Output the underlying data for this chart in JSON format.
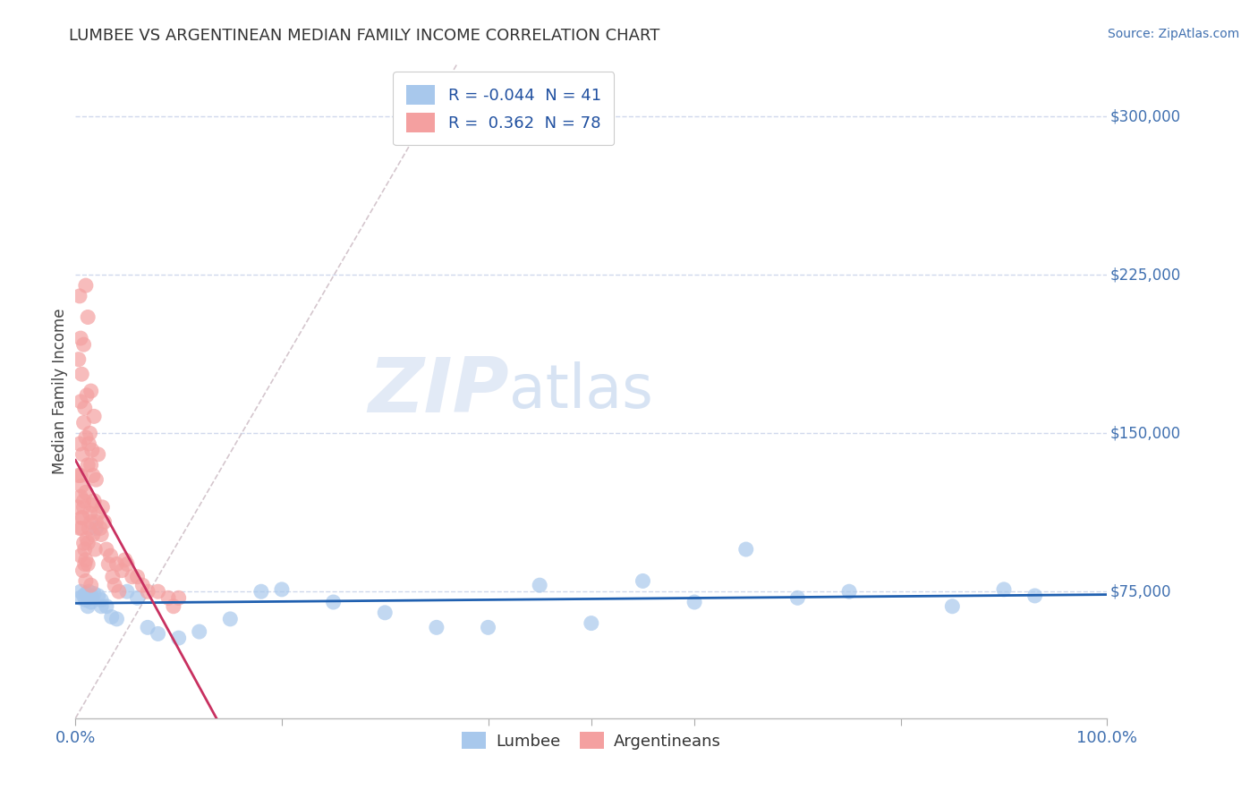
{
  "title": "LUMBEE VS ARGENTINEAN MEDIAN FAMILY INCOME CORRELATION CHART",
  "source": "Source: ZipAtlas.com",
  "ylabel": "Median Family Income",
  "ytick_labels": [
    "$75,000",
    "$150,000",
    "$225,000",
    "$300,000"
  ],
  "ytick_values": [
    75000,
    150000,
    225000,
    300000
  ],
  "ylim": [
    15000,
    325000
  ],
  "xlim": [
    0.0,
    1.0
  ],
  "legend_blue_R": "-0.044",
  "legend_blue_N": "41",
  "legend_pink_R": "0.362",
  "legend_pink_N": "78",
  "legend_label_blue": "Lumbee",
  "legend_label_pink": "Argentineans",
  "blue_color": "#A8C8EC",
  "pink_color": "#F4A0A0",
  "blue_line_color": "#2060B0",
  "pink_line_color": "#C83060",
  "diagonal_color": "#D0C0C8",
  "background_color": "#FFFFFF",
  "grid_color": "#D0D8EC",
  "watermark_zip": "ZIP",
  "watermark_atlas": "atlas",
  "lumbee_x": [
    0.005,
    0.005,
    0.008,
    0.01,
    0.01,
    0.012,
    0.013,
    0.015,
    0.015,
    0.016,
    0.018,
    0.02,
    0.022,
    0.025,
    0.025,
    0.03,
    0.035,
    0.04,
    0.05,
    0.06,
    0.07,
    0.08,
    0.1,
    0.12,
    0.15,
    0.18,
    0.2,
    0.25,
    0.3,
    0.35,
    0.4,
    0.45,
    0.5,
    0.55,
    0.6,
    0.65,
    0.7,
    0.75,
    0.85,
    0.9,
    0.93
  ],
  "lumbee_y": [
    75000,
    72000,
    73000,
    71000,
    74000,
    68000,
    75000,
    73000,
    70000,
    72000,
    74000,
    105000,
    73000,
    68000,
    71000,
    68000,
    63000,
    62000,
    75000,
    72000,
    58000,
    55000,
    53000,
    56000,
    62000,
    75000,
    76000,
    70000,
    65000,
    58000,
    58000,
    78000,
    60000,
    80000,
    70000,
    95000,
    72000,
    75000,
    68000,
    76000,
    73000
  ],
  "argent_x": [
    0.002,
    0.003,
    0.003,
    0.004,
    0.004,
    0.005,
    0.005,
    0.005,
    0.006,
    0.006,
    0.006,
    0.007,
    0.007,
    0.008,
    0.008,
    0.008,
    0.009,
    0.009,
    0.01,
    0.01,
    0.01,
    0.011,
    0.011,
    0.012,
    0.012,
    0.012,
    0.013,
    0.013,
    0.014,
    0.014,
    0.015,
    0.015,
    0.015,
    0.016,
    0.016,
    0.017,
    0.017,
    0.018,
    0.018,
    0.019,
    0.02,
    0.02,
    0.022,
    0.022,
    0.024,
    0.025,
    0.026,
    0.028,
    0.03,
    0.032,
    0.034,
    0.036,
    0.038,
    0.04,
    0.042,
    0.045,
    0.048,
    0.05,
    0.055,
    0.06,
    0.065,
    0.07,
    0.08,
    0.09,
    0.095,
    0.1,
    0.004,
    0.005,
    0.005,
    0.006,
    0.007,
    0.008,
    0.008,
    0.009,
    0.01,
    0.01,
    0.012,
    0.015
  ],
  "argent_y": [
    115000,
    130000,
    185000,
    145000,
    215000,
    120000,
    165000,
    195000,
    105000,
    125000,
    178000,
    110000,
    140000,
    118000,
    155000,
    192000,
    95000,
    162000,
    122000,
    148000,
    220000,
    100000,
    168000,
    98000,
    135000,
    205000,
    105000,
    145000,
    112000,
    150000,
    108000,
    135000,
    170000,
    116000,
    142000,
    102000,
    130000,
    118000,
    158000,
    95000,
    108000,
    128000,
    112000,
    140000,
    105000,
    102000,
    115000,
    108000,
    95000,
    88000,
    92000,
    82000,
    78000,
    88000,
    75000,
    85000,
    90000,
    88000,
    82000,
    82000,
    78000,
    75000,
    75000,
    72000,
    68000,
    72000,
    105000,
    92000,
    130000,
    110000,
    85000,
    98000,
    115000,
    88000,
    90000,
    80000,
    88000,
    78000
  ]
}
